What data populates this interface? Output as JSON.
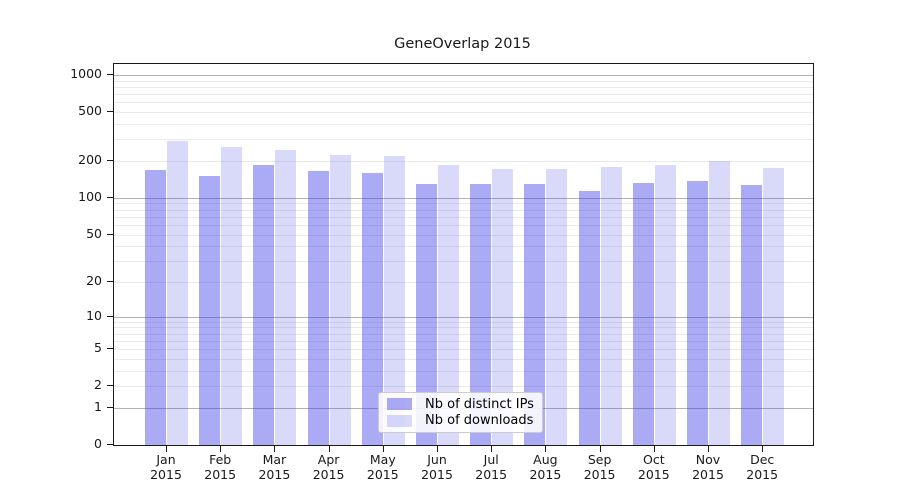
{
  "chart_data": {
    "type": "bar",
    "title": "GeneOverlap 2015",
    "categories": [
      "Jan 2015",
      "Feb 2015",
      "Mar 2015",
      "Apr 2015",
      "May 2015",
      "Jun 2015",
      "Jul 2015",
      "Aug 2015",
      "Sep 2015",
      "Oct 2015",
      "Nov 2015",
      "Dec 2015"
    ],
    "x_ticks": [
      {
        "month": "Jan",
        "year": "2015"
      },
      {
        "month": "Feb",
        "year": "2015"
      },
      {
        "month": "Mar",
        "year": "2015"
      },
      {
        "month": "Apr",
        "year": "2015"
      },
      {
        "month": "May",
        "year": "2015"
      },
      {
        "month": "Jun",
        "year": "2015"
      },
      {
        "month": "Jul",
        "year": "2015"
      },
      {
        "month": "Aug",
        "year": "2015"
      },
      {
        "month": "Sep",
        "year": "2015"
      },
      {
        "month": "Oct",
        "year": "2015"
      },
      {
        "month": "Nov",
        "year": "2015"
      },
      {
        "month": "Dec",
        "year": "2015"
      }
    ],
    "series": [
      {
        "name": "Nb of distinct IPs",
        "color": "rgba(55,55,230,0.42)",
        "values": [
          170,
          150,
          185,
          165,
          160,
          130,
          130,
          129,
          113,
          132,
          137,
          127
        ]
      },
      {
        "name": "Nb of downloads",
        "color": "rgba(55,55,230,0.19)",
        "values": [
          290,
          262,
          245,
          222,
          220,
          185,
          172,
          171,
          178,
          185,
          199,
          175
        ]
      }
    ],
    "yscale": "symlog",
    "ylim": [
      0,
      1230
    ],
    "y_ticks": [
      0,
      1,
      2,
      5,
      10,
      20,
      50,
      100,
      200,
      500,
      1000
    ],
    "grid": {
      "major_values": [
        1,
        10,
        100,
        1000
      ],
      "minor_values": [
        2,
        3,
        4,
        5,
        6,
        7,
        8,
        9,
        20,
        30,
        40,
        50,
        60,
        70,
        80,
        90,
        200,
        300,
        400,
        500,
        600,
        700,
        800,
        900
      ],
      "major_color": "#b3b3b3",
      "minor_color": "#eaeaea"
    },
    "legend_position": "lower center"
  },
  "legend": {
    "items": [
      {
        "label": "Nb of distinct IPs",
        "color": "rgba(55,55,230,0.42)"
      },
      {
        "label": "Nb of downloads",
        "color": "rgba(55,55,230,0.19)"
      }
    ]
  }
}
